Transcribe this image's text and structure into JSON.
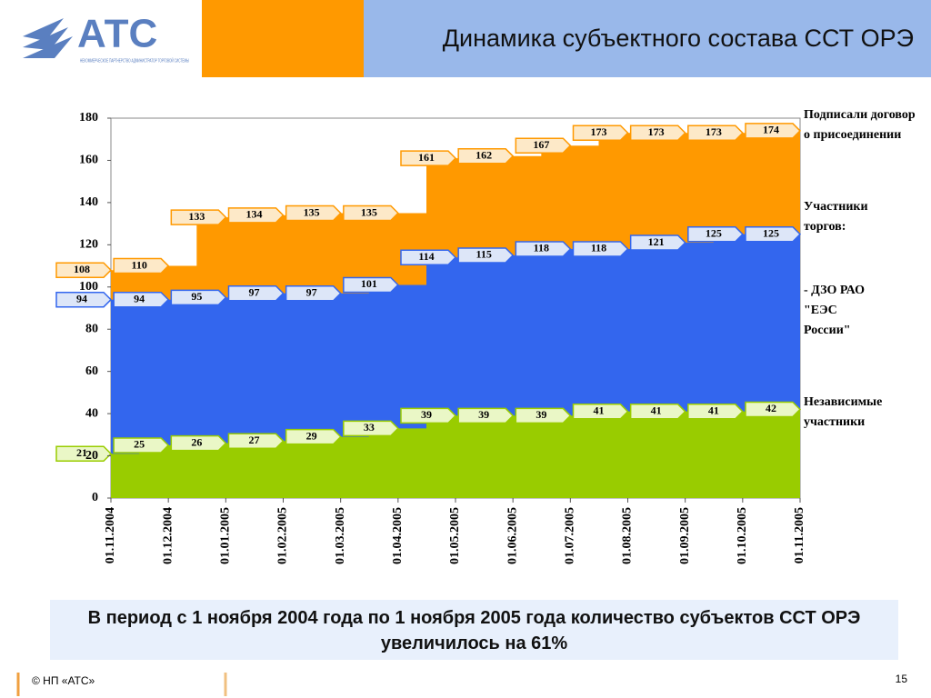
{
  "header": {
    "logo": "АТС",
    "logo_subtitle": "НЕКОММЕРЧЕСКОЕ ПАРТНЕРСТВО АДМИНИСТРАТОР ТОРГОВОЙ СИСТЕМЫ",
    "title": "Динамика субъектного состава ССТ ОРЭ"
  },
  "chart_data": {
    "type": "step-area",
    "categories": [
      "01.11.2004",
      "01.12.2004",
      "01.01.2005",
      "01.02.2005",
      "01.03.2005",
      "01.04.2005",
      "01.05.2005",
      "01.06.2005",
      "01.07.2005",
      "01.08.2005",
      "01.09.2005",
      "01.10.2005",
      "01.11.2005"
    ],
    "series": [
      {
        "name": "Подписали договор о присоединении",
        "color": "#ff9900",
        "values": [
          108,
          110,
          133,
          134,
          135,
          135,
          161,
          162,
          167,
          173,
          173,
          173,
          174
        ]
      },
      {
        "name": "- ДЗО РАО \"ЕЭС России\"",
        "color": "#3366ee",
        "values": [
          94,
          94,
          95,
          97,
          97,
          101,
          114,
          115,
          118,
          118,
          121,
          125,
          125
        ]
      },
      {
        "name": "Независимые участники",
        "color": "#99cc00",
        "values": [
          21,
          25,
          26,
          27,
          29,
          33,
          39,
          39,
          39,
          41,
          41,
          41,
          42
        ]
      }
    ],
    "legend_heading": "Участники торгов:",
    "ylim": [
      0,
      180
    ],
    "yticks": [
      0,
      20,
      40,
      60,
      80,
      100,
      120,
      140,
      160,
      180
    ],
    "grid": false
  },
  "summary": "В период с 1 ноября 2004 года по 1 ноября 2005 года количество субъектов ССТ ОРЭ увеличилось на 61%",
  "footer": {
    "copyright": "© НП «АТС»",
    "page": "15"
  }
}
